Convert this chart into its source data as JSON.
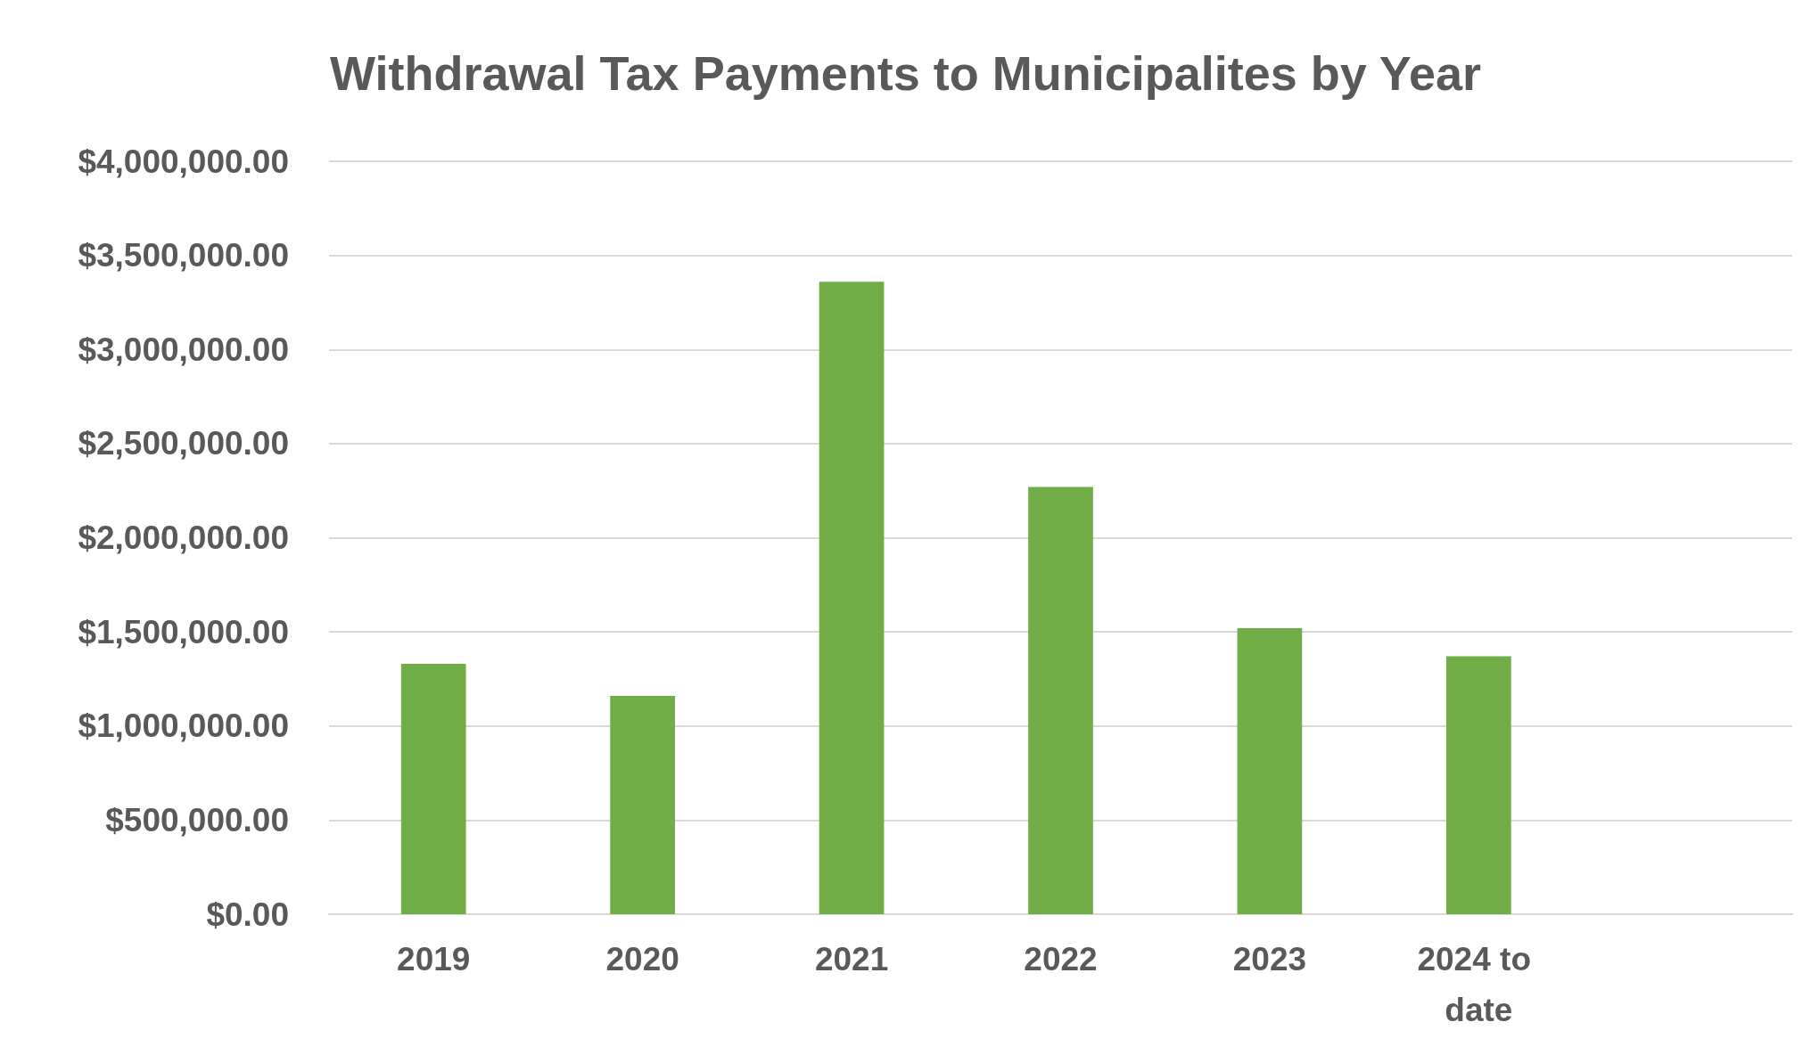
{
  "chart_data": {
    "type": "bar",
    "title": "Withdrawal Tax Payments to Municipalites by Year",
    "categories": [
      "2019",
      "2020",
      "2021",
      "2022",
      "2023",
      "2024 to date",
      null
    ],
    "values": [
      1330000,
      1160000,
      3360000,
      2270000,
      1520000,
      1370000,
      null
    ],
    "color": "#70ad47",
    "ylim": [
      0,
      4000000
    ],
    "yticks": [
      {
        "value": 0,
        "label": "$0.00"
      },
      {
        "value": 500000,
        "label": "$500,000.00"
      },
      {
        "value": 1000000,
        "label": "$1,000,000.00"
      },
      {
        "value": 1500000,
        "label": "$1,500,000.00"
      },
      {
        "value": 2000000,
        "label": "$2,000,000.00"
      },
      {
        "value": 2500000,
        "label": "$2,500,000.00"
      },
      {
        "value": 3000000,
        "label": "$3,000,000.00"
      },
      {
        "value": 3500000,
        "label": "$3,500,000.00"
      },
      {
        "value": 4000000,
        "label": "$4,000,000.00"
      }
    ],
    "grid": "y"
  }
}
